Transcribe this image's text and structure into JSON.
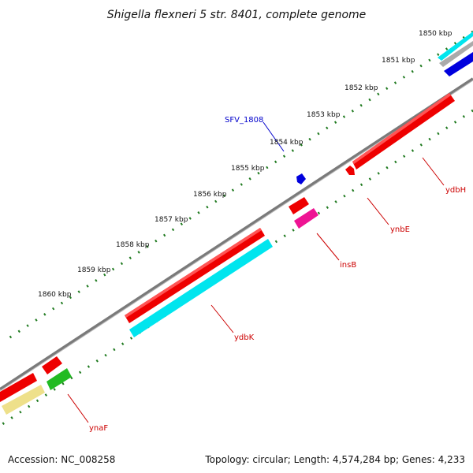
{
  "title": "Shigella flexneri 5 str. 8401, complete genome",
  "footer": {
    "accession": "Accession: NC_008258",
    "summary": "Topology: circular; Length: 4,574,284 bp; Genes: 4,233"
  },
  "scale_labels": [
    "1850 kbp",
    "1851 kbp",
    "1852 kbp",
    "1853 kbp",
    "1854 kbp",
    "1855 kbp",
    "1856 kbp",
    "1857 kbp",
    "1858 kbp",
    "1859 kbp",
    "1860 kbp"
  ],
  "gene_labels": [
    {
      "text": "SFV_1808",
      "color": "#0000cc"
    },
    {
      "text": "ydbH",
      "color": "#cc0000"
    },
    {
      "text": "ynbE",
      "color": "#cc0000"
    },
    {
      "text": "insB",
      "color": "#cc0000"
    },
    {
      "text": "ydbK",
      "color": "#cc0000"
    },
    {
      "text": "ynaF",
      "color": "#cc0000"
    }
  ],
  "colors": {
    "backbone": "#7a7a7a",
    "ticks": "#1f7a1f",
    "cds_red": "#ee0000",
    "cds_cyan": "#00e5ee",
    "cds_blue": "#0000dd",
    "cds_pink": "#ee1493",
    "cds_green": "#22bb22",
    "cds_khaki": "#eee08a"
  }
}
